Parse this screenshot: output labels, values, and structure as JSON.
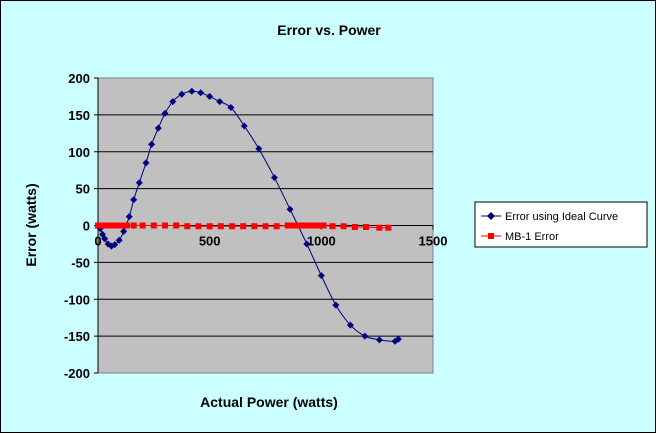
{
  "chart_data": {
    "type": "scatter",
    "title": "Error vs. Power",
    "xlabel": "Actual Power (watts)",
    "ylabel": "Error (watts)",
    "xlim": [
      0,
      1500
    ],
    "ylim": [
      -200,
      200
    ],
    "xticks": [
      "0",
      "500",
      "1000",
      "1500"
    ],
    "yticks": [
      "200",
      "150",
      "100",
      "50",
      "0",
      "-50",
      "-100",
      "-150",
      "-200"
    ],
    "grid": "horizontal",
    "plot_background": "#c0c0c0",
    "chart_background": "#ccffff",
    "legend_position": "right",
    "series": [
      {
        "name": "Error using Ideal Curve",
        "color": "#000080",
        "marker": "diamond",
        "smooth": true,
        "x": [
          0,
          10,
          20,
          30,
          45,
          60,
          75,
          95,
          115,
          140,
          160,
          185,
          215,
          240,
          270,
          300,
          335,
          375,
          420,
          460,
          500,
          545,
          595,
          655,
          720,
          790,
          860,
          935,
          1000,
          1065,
          1130,
          1195,
          1260,
          1330,
          1345
        ],
        "y": [
          0,
          -4,
          -12,
          -18,
          -25,
          -28,
          -26,
          -20,
          -8,
          12,
          35,
          58,
          85,
          110,
          132,
          152,
          168,
          178,
          182,
          180,
          175,
          168,
          160,
          135,
          104,
          65,
          22,
          -25,
          -68,
          -108,
          -135,
          -150,
          -155,
          -157,
          -154
        ]
      },
      {
        "name": "MB-1 Error",
        "color": "#ff0000",
        "marker": "square",
        "smooth": false,
        "x": [
          0,
          5,
          10,
          15,
          20,
          25,
          30,
          40,
          50,
          60,
          75,
          90,
          110,
          130,
          160,
          200,
          250,
          300,
          350,
          400,
          450,
          500,
          550,
          600,
          650,
          700,
          750,
          800,
          850,
          870,
          890,
          910,
          930,
          950,
          970,
          990,
          1010,
          1050,
          1100,
          1150,
          1200,
          1260,
          1300
        ],
        "y": [
          0,
          0,
          0,
          0,
          0,
          0,
          0,
          0,
          0,
          0,
          0,
          0,
          0,
          0,
          0,
          0,
          0,
          0,
          0,
          -1,
          -1,
          -1,
          -1,
          -1,
          -1,
          -1,
          -1,
          -1,
          0,
          0,
          0,
          0,
          0,
          0,
          0,
          0,
          0,
          -1,
          -1,
          -2,
          -2,
          -3,
          -3
        ]
      }
    ]
  }
}
